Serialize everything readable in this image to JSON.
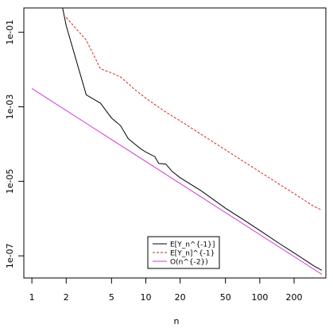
{
  "chart_data": {
    "type": "line",
    "title": "",
    "xlabel": "n",
    "ylabel": "",
    "x_scale": "log",
    "y_scale": "log",
    "xlim": [
      0.85,
      380
    ],
    "ylim": [
      2.55e-08,
      0.45
    ],
    "grid": false,
    "legend_placement": "bottom-center",
    "x_ticks": [
      {
        "value": 1,
        "label": "1"
      },
      {
        "value": 2,
        "label": "2"
      },
      {
        "value": 5,
        "label": "5"
      },
      {
        "value": 10,
        "label": "10"
      },
      {
        "value": 20,
        "label": "20"
      },
      {
        "value": 50,
        "label": "50"
      },
      {
        "value": 100,
        "label": "100"
      },
      {
        "value": 200,
        "label": "200"
      }
    ],
    "y_ticks": [
      {
        "value": 0.1,
        "label": "1e-01"
      },
      {
        "value": 0.001,
        "label": "1e-03"
      },
      {
        "value": 1e-05,
        "label": "1e-05"
      },
      {
        "value": 1e-07,
        "label": "1e-07"
      }
    ],
    "series": [
      {
        "name": "E[Y_n^{-1}]",
        "color": "#000000",
        "dash": "solid",
        "points": [
          [
            1.86,
            0.45
          ],
          [
            2,
            0.15
          ],
          [
            3,
            0.0021
          ],
          [
            4,
            0.00125
          ],
          [
            5,
            0.0005
          ],
          [
            6,
            0.00031
          ],
          [
            7,
            0.00014
          ],
          [
            8,
            0.0001
          ],
          [
            9,
            7.5e-05
          ],
          [
            10,
            6.1e-05
          ],
          [
            12,
            4.6e-05
          ],
          [
            13,
            3e-05
          ],
          [
            15,
            2.9e-05
          ],
          [
            17,
            1.85e-05
          ],
          [
            20,
            1.25e-05
          ],
          [
            25,
            8.2e-06
          ],
          [
            30,
            5.8e-06
          ],
          [
            40,
            3.1e-06
          ],
          [
            50,
            1.9e-06
          ],
          [
            70,
            9.8e-07
          ],
          [
            100,
            4.8e-07
          ],
          [
            150,
            2.1e-07
          ],
          [
            200,
            1.2e-07
          ],
          [
            300,
            5.3e-08
          ],
          [
            350,
            4.1e-08
          ]
        ]
      },
      {
        "name": "E[Y_n]^{-1}",
        "color": "#dd2222",
        "dash": "dashed",
        "points": [
          [
            2,
            0.25
          ],
          [
            3,
            0.062
          ],
          [
            4,
            0.0105
          ],
          [
            5,
            0.0082
          ],
          [
            6,
            0.0063
          ],
          [
            7,
            0.0042
          ],
          [
            8,
            0.0029
          ],
          [
            10,
            0.0017
          ],
          [
            15,
            0.00072
          ],
          [
            20,
            0.00042
          ],
          [
            30,
            0.00019
          ],
          [
            50,
            7e-05
          ],
          [
            70,
            3.6e-05
          ],
          [
            100,
            1.8e-05
          ],
          [
            150,
            8.2e-06
          ],
          [
            200,
            4.7e-06
          ],
          [
            300,
            2.1e-06
          ],
          [
            350,
            1.7e-06
          ]
        ]
      },
      {
        "name": "O(n^{-2})",
        "color": "#d23cd2",
        "dash": "solid",
        "points": [
          [
            1,
            0.0031
          ],
          [
            350,
            3.2e-08
          ]
        ]
      }
    ]
  }
}
